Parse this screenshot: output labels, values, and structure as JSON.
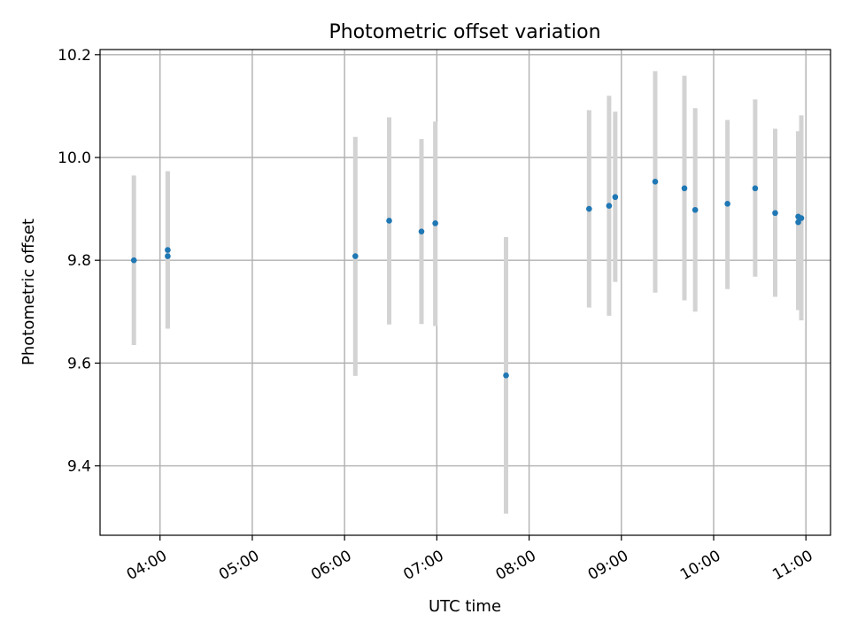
{
  "chart_data": {
    "type": "scatter",
    "title": "Photometric offset variation",
    "xlabel": "UTC time",
    "ylabel": "Photometric offset",
    "x_unit": "time",
    "xlim": [
      "03:21",
      "11:16"
    ],
    "ylim": [
      9.265,
      10.21
    ],
    "x_ticks": [
      "04:00",
      "05:00",
      "06:00",
      "07:00",
      "08:00",
      "09:00",
      "10:00",
      "11:00"
    ],
    "y_ticks": [
      9.4,
      9.6,
      9.8,
      10.0,
      10.2
    ],
    "y_tick_labels": [
      "9.4",
      "9.6",
      "9.8",
      "10.0",
      "10.2"
    ],
    "grid": true,
    "marker_color": "#1f77b4",
    "errorbar_color": "#d3d3d3",
    "points": [
      {
        "x": "03:43",
        "y": 9.8,
        "low": 9.635,
        "high": 9.965
      },
      {
        "x": "04:05",
        "y": 9.82,
        "low": 9.667,
        "high": 9.973
      },
      {
        "x": "04:05",
        "y": 9.808,
        "low": 9.667,
        "high": 9.973
      },
      {
        "x": "06:07",
        "y": 9.808,
        "low": 9.575,
        "high": 10.04
      },
      {
        "x": "06:29",
        "y": 9.877,
        "low": 9.675,
        "high": 10.078
      },
      {
        "x": "06:50",
        "y": 9.856,
        "low": 9.676,
        "high": 10.036
      },
      {
        "x": "06:59",
        "y": 9.872,
        "low": 9.672,
        "high": 10.07
      },
      {
        "x": "07:45",
        "y": 9.576,
        "low": 9.307,
        "high": 9.845
      },
      {
        "x": "08:39",
        "y": 9.9,
        "low": 9.708,
        "high": 10.092
      },
      {
        "x": "08:52",
        "y": 9.906,
        "low": 9.692,
        "high": 10.12
      },
      {
        "x": "08:56",
        "y": 9.923,
        "low": 9.758,
        "high": 10.089
      },
      {
        "x": "09:22",
        "y": 9.953,
        "low": 9.737,
        "high": 10.168
      },
      {
        "x": "09:41",
        "y": 9.94,
        "low": 9.722,
        "high": 10.159
      },
      {
        "x": "09:48",
        "y": 9.898,
        "low": 9.7,
        "high": 10.096
      },
      {
        "x": "10:09",
        "y": 9.91,
        "low": 9.744,
        "high": 10.073
      },
      {
        "x": "10:27",
        "y": 9.94,
        "low": 9.768,
        "high": 10.113
      },
      {
        "x": "10:40",
        "y": 9.892,
        "low": 9.729,
        "high": 10.056
      },
      {
        "x": "10:55",
        "y": 9.885,
        "low": 9.703,
        "high": 10.051
      },
      {
        "x": "10:55",
        "y": 9.874,
        "low": 9.703,
        "high": 10.051
      },
      {
        "x": "10:57",
        "y": 9.882,
        "low": 9.683,
        "high": 10.082
      }
    ]
  }
}
